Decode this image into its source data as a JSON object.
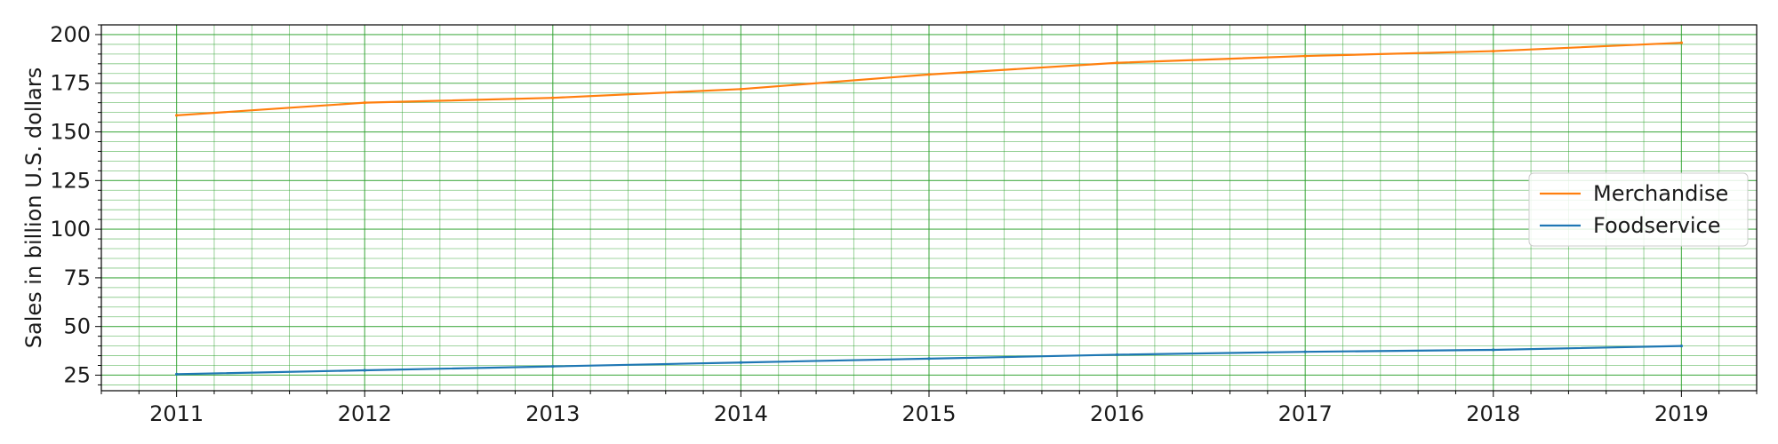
{
  "chart_data": {
    "type": "line",
    "x": [
      2011,
      2012,
      2013,
      2014,
      2015,
      2016,
      2017,
      2018,
      2019
    ],
    "series": [
      {
        "name": "Merchandise",
        "color": "#ff7f0e",
        "values": [
          158.5,
          165.0,
          167.5,
          172.0,
          179.5,
          185.5,
          189.0,
          191.5,
          195.8
        ]
      },
      {
        "name": "Foodservice",
        "color": "#1f77b4",
        "values": [
          25.5,
          27.5,
          29.5,
          31.5,
          33.5,
          35.5,
          37.0,
          38.0,
          40.0
        ]
      }
    ],
    "xlabel": "",
    "ylabel": "Sales in billion U.S. dollars",
    "xlim": [
      2010.6,
      2019.4
    ],
    "ylim": [
      17,
      205
    ],
    "x_ticks": [
      "2011",
      "2012",
      "2013",
      "2014",
      "2015",
      "2016",
      "2017",
      "2018",
      "2019"
    ],
    "y_ticks": [
      "25",
      "50",
      "75",
      "100",
      "125",
      "150",
      "175",
      "200"
    ],
    "grid": true,
    "grid_color": "#2ca02c",
    "legend_position": "center-right"
  }
}
